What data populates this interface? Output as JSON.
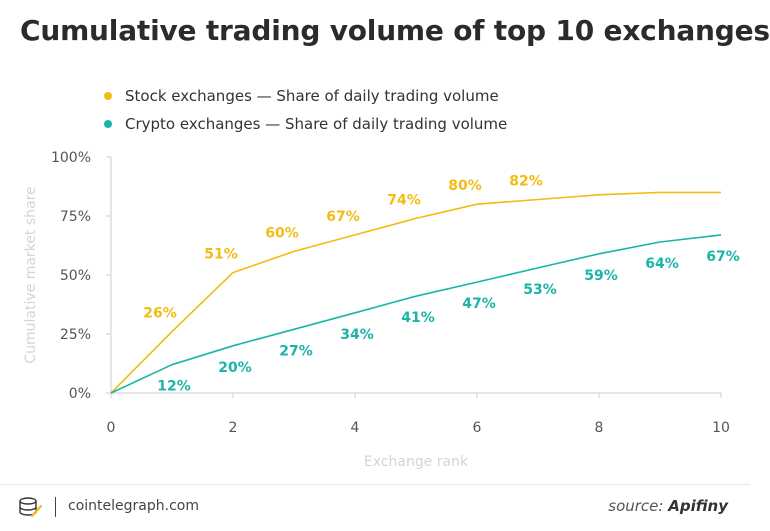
{
  "chart_data": {
    "type": "line",
    "title": "Cumulative trading volume of top 10 exchanges",
    "xlabel": "Exchange rank",
    "ylabel": "Cumulative market share",
    "xlim": [
      0,
      10
    ],
    "ylim": [
      0,
      100
    ],
    "x_ticks": [
      "0",
      "2",
      "4",
      "6",
      "8",
      "10"
    ],
    "y_ticks": [
      "0%",
      "25%",
      "50%",
      "75%",
      "100%"
    ],
    "grid": false,
    "legend_position": "top-left",
    "series": [
      {
        "name": "Stock exchanges — Share of daily trading volume",
        "color": "#f2bc12",
        "x": [
          0,
          1,
          2,
          3,
          4,
          5,
          6,
          7,
          8,
          9,
          10
        ],
        "values": [
          0,
          26,
          51,
          60,
          67,
          74,
          80,
          82,
          84,
          85,
          85
        ],
        "data_labels": [
          null,
          "26%",
          "51%",
          "60%",
          "67%",
          "74%",
          "80%",
          "82%",
          null,
          null,
          null
        ]
      },
      {
        "name": "Crypto exchanges — Share of daily trading volume",
        "color": "#1ab5a9",
        "x": [
          0,
          1,
          2,
          3,
          4,
          5,
          6,
          7,
          8,
          9,
          10
        ],
        "values": [
          0,
          12,
          20,
          27,
          34,
          41,
          47,
          53,
          59,
          64,
          67
        ],
        "data_labels": [
          null,
          "12%",
          "20%",
          "27%",
          "34%",
          "41%",
          "47%",
          "53%",
          "59%",
          "64%",
          "67%"
        ]
      }
    ]
  },
  "footer": {
    "site": "cointelegraph.com",
    "source_prefix": "source:",
    "source_name": "Apifiny"
  },
  "colors": {
    "axis": "#cccccc",
    "tick_text": "#555555",
    "axis_title": "#d4d4d4",
    "title_text": "#2b2b2b"
  }
}
